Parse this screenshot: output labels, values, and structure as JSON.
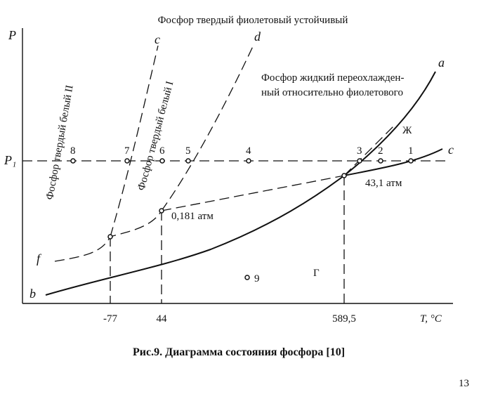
{
  "title": "Фосфор твердый фиолетовый устойчивый",
  "axes": {
    "y_label": "P",
    "p1_label": "P₁",
    "x_label": "T, °C",
    "x_marks": [
      "-77",
      "44",
      "589,5"
    ]
  },
  "curves": {
    "c_left": "c",
    "d": "d",
    "a": "a",
    "c_right": "c",
    "f": "f",
    "b": "b"
  },
  "regions": {
    "liquid_line1": "Фосфор жидкий переохлажден-",
    "liquid_line2": "ный относительно фиолетового",
    "white2": "Фосфор твердый белый II",
    "white1": "Фосфор твердый белый I",
    "liquid": "Ж",
    "gas": "Г"
  },
  "points": [
    "8",
    "7",
    "6",
    "5",
    "4",
    "3",
    "2",
    "1",
    "9"
  ],
  "pressures": {
    "low": "0,181 атм",
    "high": "43,1 атм"
  },
  "caption": "Рис.9. Диаграмма состояния фосфора [10]",
  "page_number": "13"
}
